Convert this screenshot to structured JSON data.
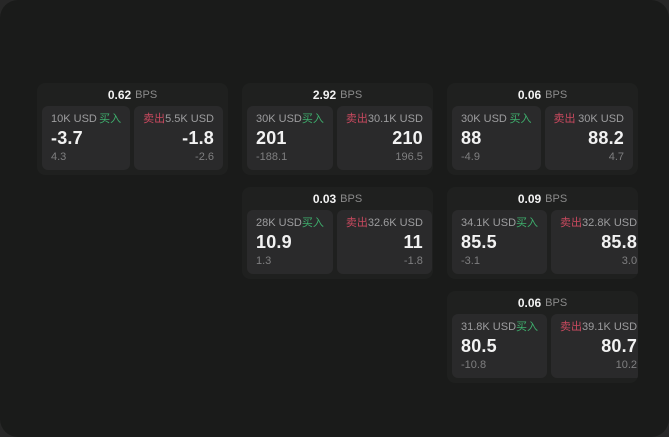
{
  "theme": {
    "bg_matte": "#272727",
    "bg_window": "#1a1b1a",
    "card_bg": "#1f201f",
    "panel_bg": "#2a2a2b",
    "accent_green": "#3eaf6d",
    "accent_red": "#c9495f",
    "text_primary": "#f2f2f2",
    "text_label": "#9d9d9f",
    "text_secondary": "#8b8b8b",
    "text_tertiary": "#7f7f80"
  },
  "labels": {
    "bps_unit": "BPS",
    "buy": "买入",
    "sell": "卖出"
  },
  "cards": [
    {
      "col": 1,
      "row": 1,
      "bps": "0.62",
      "buy": {
        "amount": "10K USD",
        "value": "-3.7",
        "delta": "4.3"
      },
      "sell": {
        "amount": "5.5K USD",
        "value": "-1.8",
        "delta": "-2.6"
      }
    },
    {
      "col": 2,
      "row": 1,
      "bps": "2.92",
      "buy": {
        "amount": "30K USD",
        "value": "201",
        "delta": "-188.1"
      },
      "sell": {
        "amount": "30.1K USD",
        "value": "210",
        "delta": "196.5"
      }
    },
    {
      "col": 3,
      "row": 1,
      "bps": "0.06",
      "buy": {
        "amount": "30K USD",
        "value": "88",
        "delta": "-4.9"
      },
      "sell": {
        "amount": "30K USD",
        "value": "88.2",
        "delta": "4.7"
      }
    },
    {
      "col": 2,
      "row": 2,
      "bps": "0.03",
      "buy": {
        "amount": "28K USD",
        "value": "10.9",
        "delta": "1.3"
      },
      "sell": {
        "amount": "32.6K USD",
        "value": "11",
        "delta": "-1.8"
      }
    },
    {
      "col": 3,
      "row": 2,
      "bps": "0.09",
      "buy": {
        "amount": "34.1K USD",
        "value": "85.5",
        "delta": "-3.1"
      },
      "sell": {
        "amount": "32.8K USD",
        "value": "85.8",
        "delta": "3.0"
      }
    },
    {
      "col": 3,
      "row": 3,
      "bps": "0.06",
      "buy": {
        "amount": "31.8K USD",
        "value": "80.5",
        "delta": "-10.8"
      },
      "sell": {
        "amount": "39.1K USD",
        "value": "80.7",
        "delta": "10.2"
      }
    }
  ]
}
